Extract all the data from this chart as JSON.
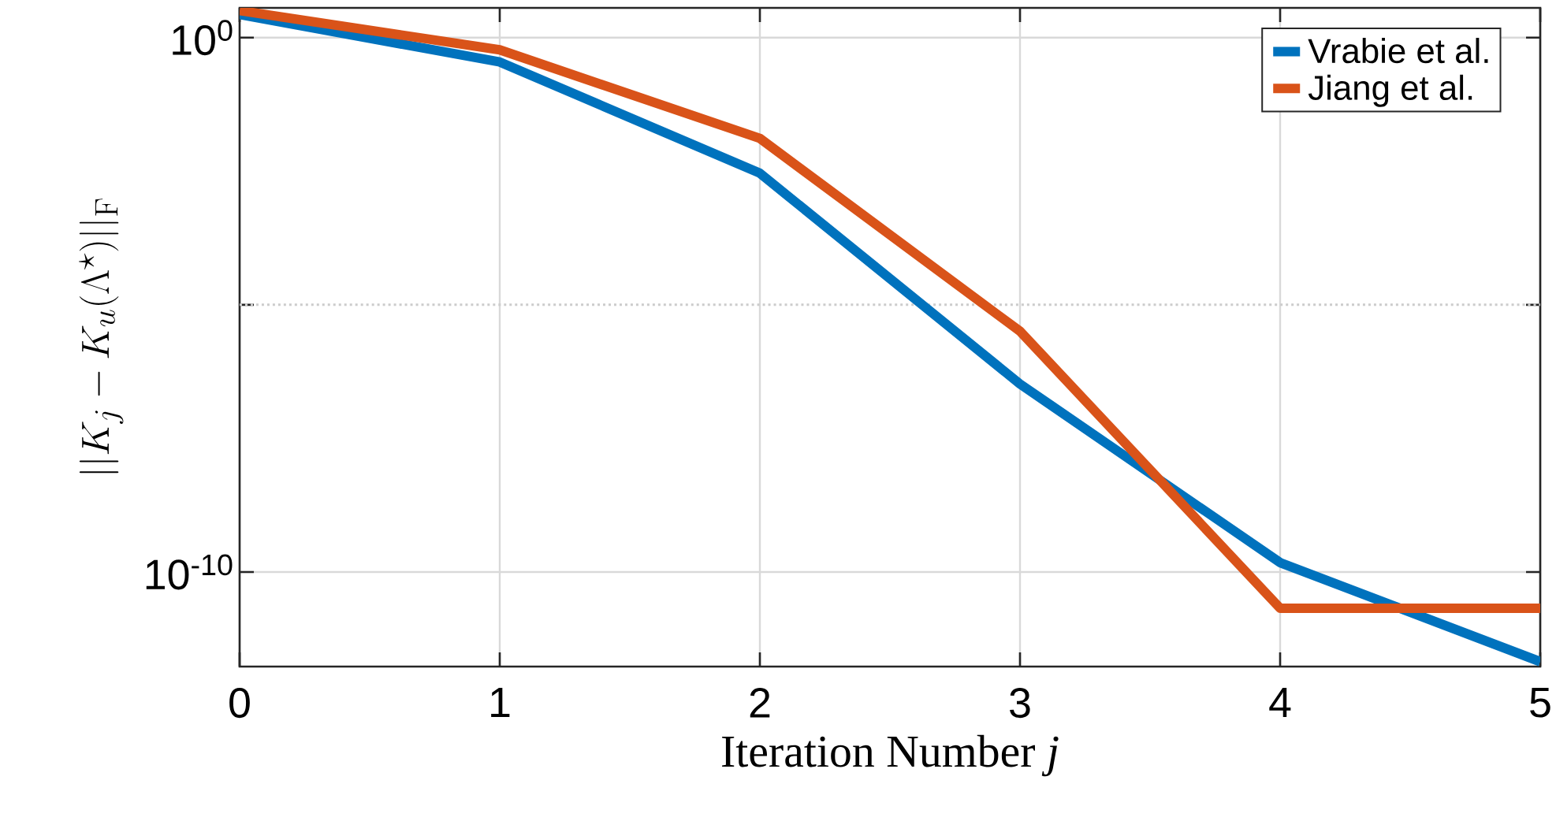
{
  "chart_data": {
    "type": "line",
    "xlabel": "Iteration Number *j*",
    "ylabel": "||K_j - K_u(\\Lambda^\\star)||_{\\mathrm{F}}",
    "x": [
      0,
      1,
      2,
      3,
      4,
      5
    ],
    "series": [
      {
        "name": "Vrabie et al.",
        "color": "#0072bd",
        "values": [
          2.7,
          0.35,
          0.0029,
          3.3e-07,
          1.5e-10,
          2.1e-12
        ]
      },
      {
        "name": "Jiang et al.",
        "color": "#d95319",
        "values": [
          3.2,
          0.59,
          0.013,
          3.2e-06,
          2.1e-11,
          2.1e-11
        ]
      }
    ],
    "log": "y",
    "xlim": [
      0,
      5
    ],
    "ylim": [
      1.7e-12,
      3.6
    ],
    "xticks": [
      0,
      1,
      2,
      3,
      4,
      5
    ],
    "yticks": [
      {
        "value": 1,
        "label": "10$^{0}$"
      },
      {
        "value": 1e-05,
        "label": null
      },
      {
        "value": 1e-10,
        "label": "10$^{-10}$"
      }
    ],
    "ref_lines": [
      {
        "axis": "y",
        "value": 1e-05,
        "color": "#cccccc",
        "line_style": "dotted"
      }
    ],
    "grid": true,
    "legend": "top right",
    "line_style": "solid",
    "marker": "none"
  }
}
